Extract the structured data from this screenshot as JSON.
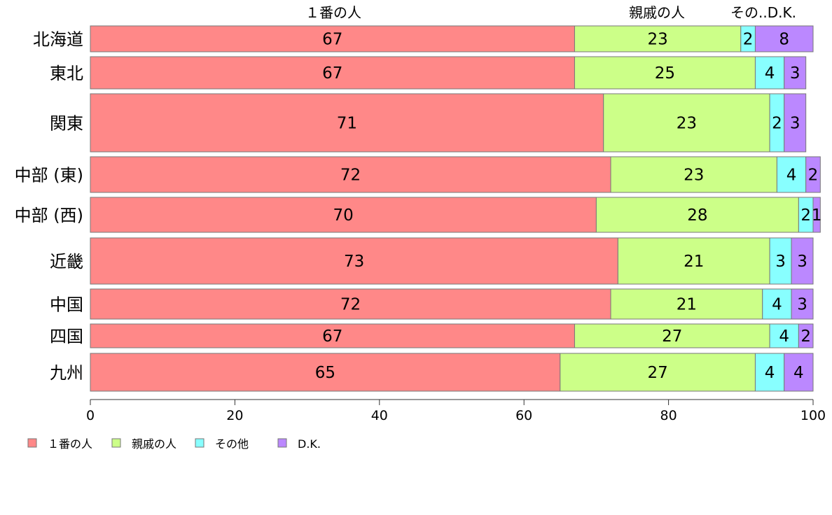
{
  "chart_data": {
    "type": "bar",
    "orientation": "horizontal",
    "stacked": true,
    "categories": [
      "北海道",
      "東北",
      "関東",
      "中部 (東)",
      "中部 (西)",
      "近畿",
      "中国",
      "四国",
      "九州"
    ],
    "series": [
      {
        "name": "１番の人",
        "color": "#FF8888",
        "values": [
          67,
          67,
          71,
          72,
          70,
          73,
          72,
          67,
          65
        ]
      },
      {
        "name": "親戚の人",
        "color": "#CCFF88",
        "values": [
          23,
          25,
          23,
          23,
          28,
          21,
          21,
          27,
          27
        ]
      },
      {
        "name": "その他",
        "color": "#88FFFF",
        "values": [
          2,
          4,
          2,
          4,
          2,
          3,
          4,
          4,
          4
        ]
      },
      {
        "name": "D.K.",
        "color": "#BB88FF",
        "values": [
          8,
          3,
          3,
          2,
          1,
          3,
          3,
          2,
          4
        ]
      }
    ],
    "header_labels": [
      "１番の人",
      "親戚の人",
      "その..D.K."
    ],
    "xlim": [
      0,
      100
    ],
    "xticks": [
      "0",
      "20",
      "40",
      "60",
      "80",
      "100"
    ],
    "legend_position": "bottom-left",
    "grid": false
  }
}
